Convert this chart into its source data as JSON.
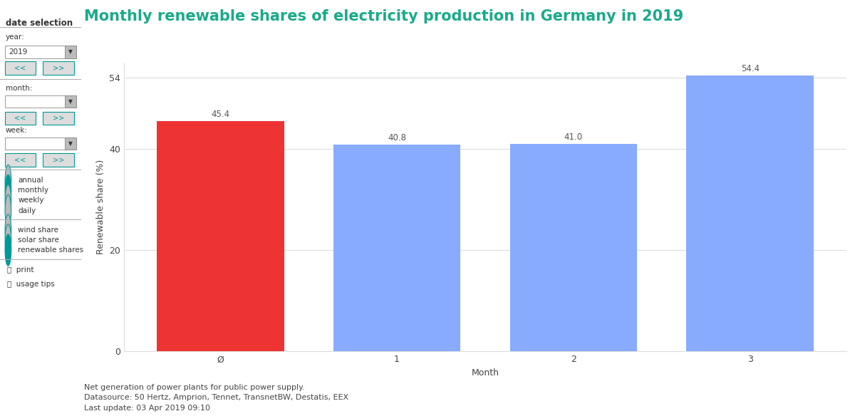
{
  "title": "Monthly renewable shares of electricity production in Germany in 2019",
  "title_color": "#1aaa8a",
  "title_fontsize": 15,
  "categories": [
    "Ø",
    "1",
    "2",
    "3"
  ],
  "values": [
    45.4,
    40.8,
    41.0,
    54.4
  ],
  "bar_colors": [
    "#ee3333",
    "#88aaff",
    "#88aaff",
    "#88aaff"
  ],
  "xlabel": "Month",
  "ylabel": "Renewable share (%)",
  "ylim": [
    0,
    57
  ],
  "yticks": [
    0,
    20,
    40,
    54
  ],
  "grid_color": "#dddddd",
  "background_color": "#ffffff",
  "footnote_line1": "Net generation of power plants for public power supply.",
  "footnote_line2": "Datasource: 50 Hertz, Amprion, Tennet, TransnetBW, Destatis, EEX",
  "footnote_line3": "Last update: 03 Apr 2019 09:10",
  "footnote_fontsize": 8,
  "label_fontsize": 8.5,
  "axis_fontsize": 9,
  "sidebar_bg": "#c8c8c8",
  "sidebar_title": "date selection",
  "teal": "#009999"
}
